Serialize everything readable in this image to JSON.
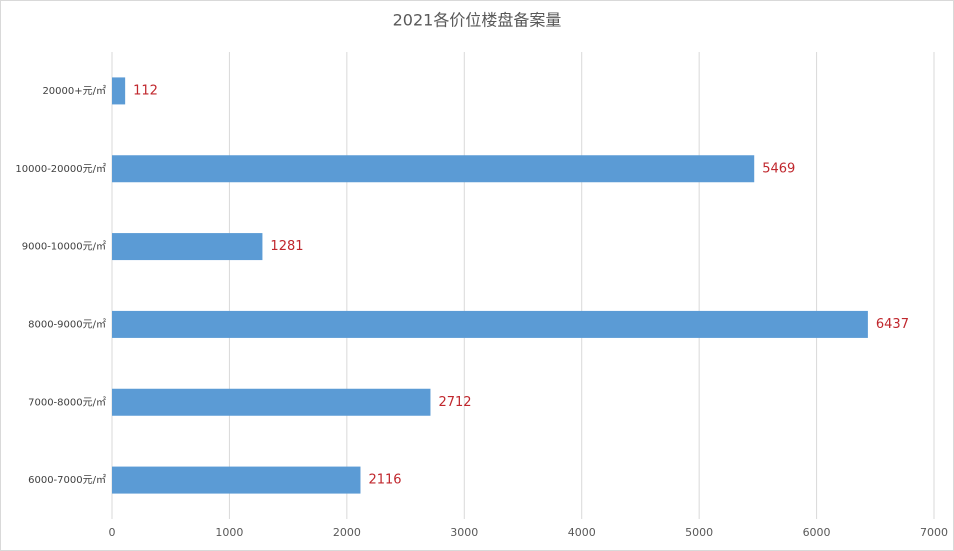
{
  "chart_data": {
    "type": "bar",
    "orientation": "horizontal",
    "title": "2021各价位楼盘备案量",
    "categories": [
      "20000+元/㎡",
      "10000-20000元/㎡",
      "9000-10000元/㎡",
      "8000-9000元/㎡",
      "7000-8000元/㎡",
      "6000-7000元/㎡"
    ],
    "values": [
      112,
      5469,
      1281,
      6437,
      2712,
      2116
    ],
    "color": "#5b9bd5",
    "xlim": [
      0,
      7000
    ],
    "xticks": [
      0,
      1000,
      2000,
      3000,
      4000,
      5000,
      6000,
      7000
    ],
    "grid": true
  }
}
